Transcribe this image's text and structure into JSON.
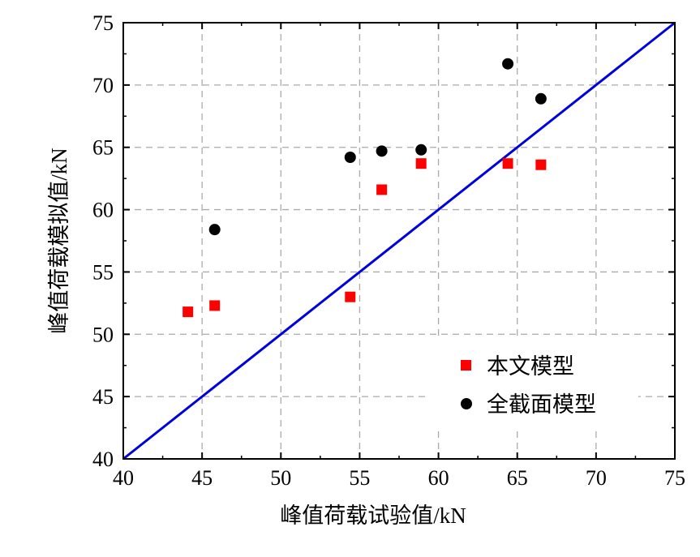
{
  "chart_data": {
    "type": "scatter",
    "title": "",
    "xlabel": "峰值荷载试验值/kN",
    "ylabel": "峰值荷载模拟值/kN",
    "xlim": [
      40,
      75
    ],
    "ylim": [
      40,
      75
    ],
    "xticks": [
      "40",
      "45",
      "50",
      "55",
      "60",
      "65",
      "70",
      "75"
    ],
    "yticks": [
      "40",
      "45",
      "50",
      "55",
      "60",
      "65",
      "70",
      "75"
    ],
    "grid": true,
    "legend_position": "bottom-right",
    "reference_line": {
      "name": "y = x",
      "from": [
        40,
        40
      ],
      "to": [
        75,
        75
      ],
      "color": "#0000dd"
    },
    "series": [
      {
        "name": "本文模型",
        "marker": "square",
        "color": "#ff0000",
        "x": [
          44.1,
          45.8,
          54.4,
          56.4,
          58.9,
          64.4,
          66.5
        ],
        "y": [
          51.8,
          52.3,
          53.0,
          61.6,
          63.7,
          63.7,
          63.6
        ]
      },
      {
        "name": "全截面模型",
        "marker": "circle",
        "color": "#000000",
        "x": [
          45.8,
          54.4,
          56.4,
          58.9,
          64.4,
          66.5
        ],
        "y": [
          58.4,
          64.2,
          64.7,
          64.8,
          71.7,
          68.9
        ]
      }
    ]
  }
}
